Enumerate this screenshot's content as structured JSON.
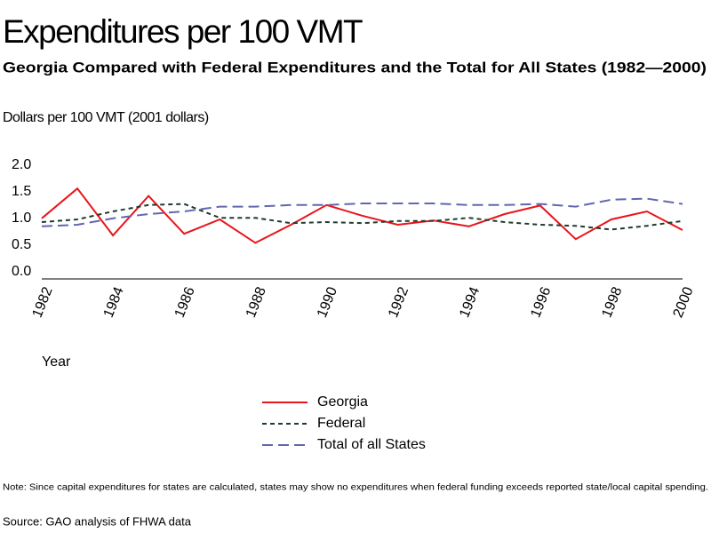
{
  "chart_data": {
    "type": "line",
    "title": "Expenditures per 100 VMT",
    "subtitle": "Georgia Compared with Federal Expenditures and the Total for All States (1982—2000)",
    "y_label": "Dollars per 100 VMT (2001 dollars)",
    "x_label": "Year",
    "x": [
      1982,
      1983,
      1984,
      1985,
      1986,
      1987,
      1988,
      1989,
      1990,
      1991,
      1992,
      1993,
      1994,
      1995,
      1996,
      1997,
      1998,
      1999,
      2000
    ],
    "xlim": [
      1982,
      2000
    ],
    "xticks": [
      1982,
      1984,
      1986,
      1988,
      1990,
      1992,
      1994,
      1996,
      1998,
      2000
    ],
    "ylim": [
      0,
      2
    ],
    "yticks": [
      {
        "value": 0,
        "label": "0.0"
      },
      0.5,
      {
        "value": 1,
        "label": "1.0"
      },
      1.5,
      {
        "value": 2,
        "label": "2.0"
      }
    ],
    "series": [
      {
        "name": "Georgia",
        "color": "#e8141b",
        "linestyle": "solid",
        "values": [
          1.07,
          1.63,
          0.75,
          1.49,
          0.78,
          1.05,
          0.61,
          0.95,
          1.32,
          1.12,
          0.95,
          1.03,
          0.92,
          1.15,
          1.31,
          0.68,
          1.05,
          1.2,
          0.85
        ]
      },
      {
        "name": "Federal",
        "color": "#1e3b2b",
        "linestyle": "dotted",
        "values": [
          1.0,
          1.05,
          1.2,
          1.32,
          1.34,
          1.08,
          1.08,
          0.98,
          1.0,
          0.98,
          1.02,
          1.02,
          1.08,
          1.0,
          0.95,
          0.93,
          0.86,
          0.93,
          1.02
        ]
      },
      {
        "name": "Total of all States",
        "color": "#6366b0",
        "linestyle": "dashed",
        "values": [
          0.92,
          0.95,
          1.07,
          1.15,
          1.2,
          1.29,
          1.29,
          1.32,
          1.32,
          1.35,
          1.35,
          1.35,
          1.32,
          1.32,
          1.34,
          1.29,
          1.42,
          1.44,
          1.34
        ]
      }
    ],
    "note": "Note: Since capital expenditures for states are calculated, states may show no expenditures when federal funding exceeds reported state/local capital spending.",
    "source": "Source: GAO analysis of FHWA data"
  }
}
